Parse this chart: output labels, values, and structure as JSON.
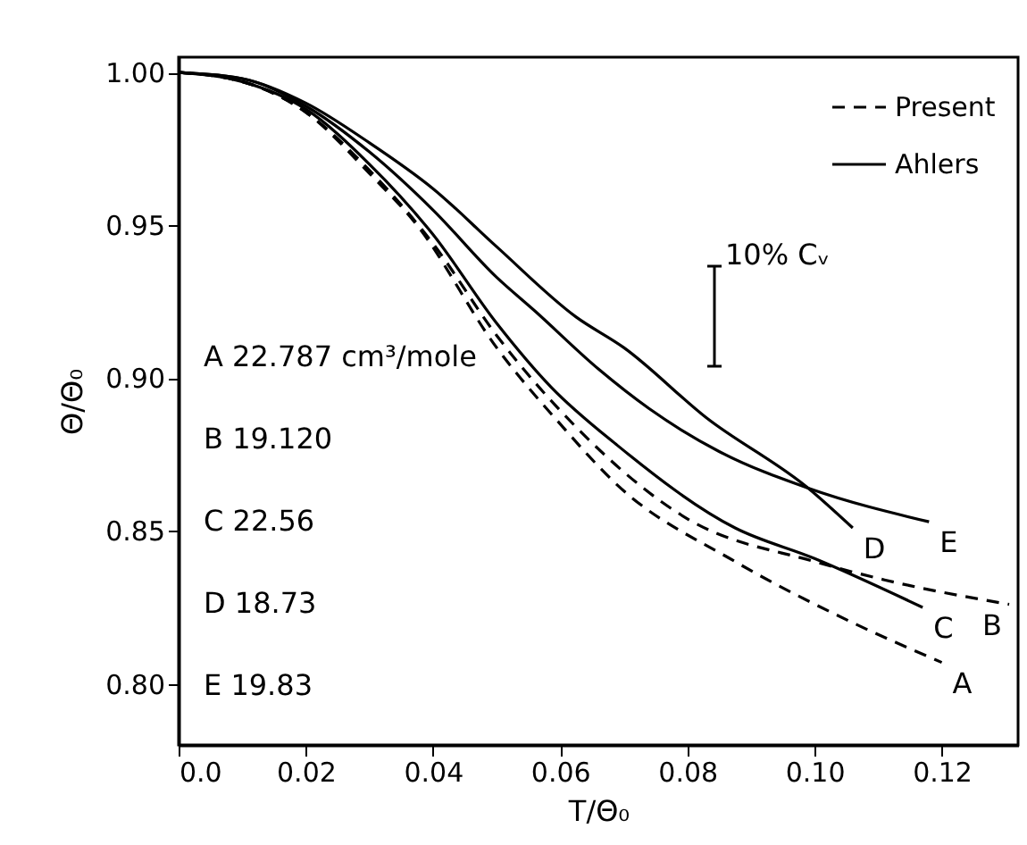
{
  "chart_data": {
    "type": "line",
    "xlabel": "T/Θ₀",
    "ylabel": "Θ/Θ₀",
    "xlim": [
      0,
      0.132
    ],
    "ylim": [
      0.78,
      1.005
    ],
    "xticks": [
      {
        "value": 0,
        "label": "0.0"
      },
      0.02,
      0.04,
      0.06,
      0.08,
      {
        "value": 0.1,
        "label": "0.10"
      },
      0.12
    ],
    "yticks": [
      {
        "value": 0.8,
        "label": "0.80"
      },
      0.85,
      {
        "value": 0.9,
        "label": "0.90"
      },
      0.95,
      {
        "value": 1.0,
        "label": "1.00"
      }
    ],
    "grid": false,
    "legend": "top right",
    "marker": "none",
    "series": [
      {
        "name": "Present",
        "color": "#000000",
        "line_style": "dashed",
        "x": [
          0,
          0.01,
          0.02,
          0.03,
          0.0375,
          0.05,
          0.06,
          0.069,
          0.0875,
          0.106,
          0.12
        ],
        "values": [
          1.0,
          0.997,
          0.987,
          0.967,
          0.95,
          0.91,
          0.885,
          0.865,
          0.84,
          0.82,
          0.807
        ]
      },
      {
        "color": "#000000",
        "line_style": "dashed",
        "x": [
          0,
          0.01,
          0.02,
          0.03,
          0.04,
          0.05,
          0.0625,
          0.08,
          0.1,
          0.111,
          0.1306
        ],
        "values": [
          1.0,
          0.997,
          0.987,
          0.968,
          0.944,
          0.914,
          0.884,
          0.854,
          0.84,
          0.834,
          0.826
        ]
      },
      {
        "name": "Ahlers",
        "color": "#000000",
        "line_style": "solid",
        "x": [
          0,
          0.01,
          0.02,
          0.03,
          0.04,
          0.05,
          0.0586,
          0.069,
          0.0875,
          0.1,
          0.117
        ],
        "values": [
          1.0,
          0.997,
          0.988,
          0.97,
          0.947,
          0.918,
          0.897,
          0.878,
          0.851,
          0.841,
          0.825
        ]
      },
      {
        "color": "#000000",
        "line_style": "solid",
        "x": [
          0,
          0.01,
          0.02,
          0.03,
          0.04,
          0.05,
          0.0625,
          0.07,
          0.083,
          0.099,
          0.106
        ],
        "values": [
          1.0,
          0.998,
          0.99,
          0.977,
          0.962,
          0.943,
          0.92,
          0.91,
          0.887,
          0.864,
          0.851
        ]
      },
      {
        "color": "#000000",
        "line_style": "solid",
        "x": [
          0,
          0.01,
          0.02,
          0.03,
          0.04,
          0.05,
          0.056,
          0.066,
          0.074,
          0.085,
          0.099,
          0.118
        ],
        "values": [
          1.0,
          0.998,
          0.989,
          0.974,
          0.955,
          0.933,
          0.922,
          0.903,
          0.89,
          0.876,
          0.864,
          0.853
        ]
      }
    ],
    "annotations": [
      {
        "text": "A",
        "x": 0.12,
        "y": 0.807
      },
      {
        "text": "B",
        "x": 0.1306,
        "y": 0.826
      },
      {
        "text": "C",
        "x": 0.117,
        "y": 0.825
      },
      {
        "text": "D",
        "x": 0.106,
        "y": 0.851
      },
      {
        "text": "E",
        "x": 0.118,
        "y": 0.853
      },
      "A  22.787 cm³/mole",
      "B  19.120",
      "C  22.56",
      "D  18.73",
      "E  19.83",
      "10% Cᵥ"
    ]
  }
}
